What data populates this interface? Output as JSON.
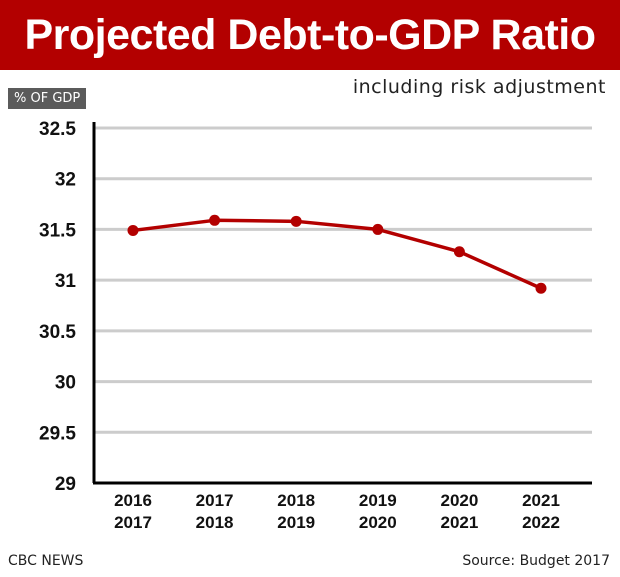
{
  "chart_data": {
    "type": "line",
    "title": "Projected Debt-to-GDP Ratio",
    "subtitle": "including risk adjustment",
    "ylabel": "% OF GDP",
    "xlabel": "",
    "categories": [
      [
        "2016",
        "2017"
      ],
      [
        "2017",
        "2018"
      ],
      [
        "2018",
        "2019"
      ],
      [
        "2019",
        "2020"
      ],
      [
        "2020",
        "2021"
      ],
      [
        "2021",
        "2022"
      ]
    ],
    "values": [
      31.49,
      31.59,
      31.58,
      31.5,
      31.28,
      30.92
    ],
    "ylim": [
      29,
      32.5
    ],
    "yticks": [
      32.5,
      32,
      31.5,
      31,
      30.5,
      30,
      29.5,
      29
    ],
    "ytick_labels": [
      "32.5",
      "32",
      "31.5",
      "31",
      "30.5",
      "30",
      "29.5",
      "29"
    ],
    "grid": true,
    "line_color": "#b30000"
  },
  "colors": {
    "title_bg": "#b30000",
    "grid": "#cccccc",
    "axis": "#000000"
  },
  "footer": {
    "credit": "CBC NEWS",
    "source": "Source: Budget 2017"
  }
}
